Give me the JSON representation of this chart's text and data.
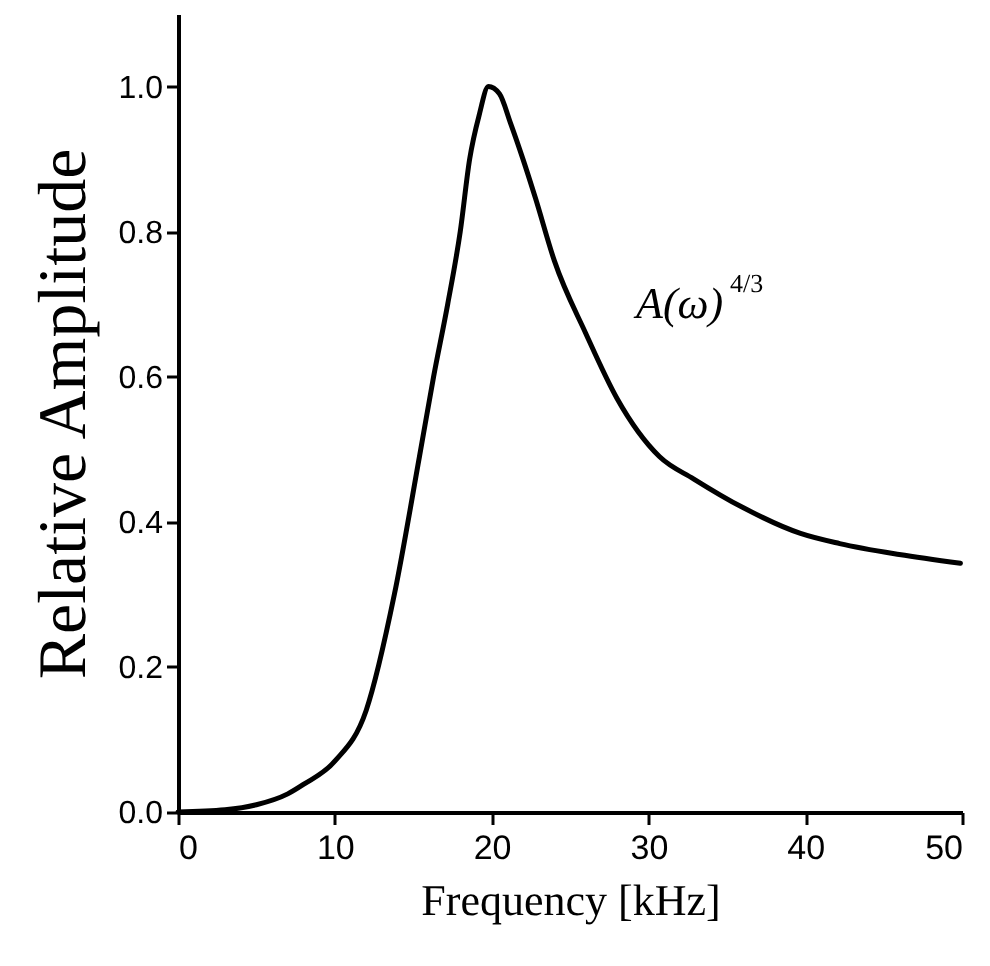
{
  "chart_data": {
    "type": "line",
    "xlabel": "Frequency [kHz]",
    "ylabel": "Relative Amplitude",
    "annotations": [
      "A(ω)$^{4/3}$"
    ],
    "x": [
      0,
      3,
      5,
      7,
      8,
      10,
      12,
      13.8,
      15.4,
      16.3,
      17.2,
      18,
      18.6,
      19.2,
      19.8,
      20.5,
      21.2,
      22,
      22.8,
      24,
      26,
      28,
      30.7,
      32.9,
      36,
      39.7,
      42.2,
      46,
      49.9
    ],
    "series": [
      {
        "color": "#000000",
        "values": [
          0,
          0.003,
          0.01,
          0.025,
          0.038,
          0.07,
          0.14,
          0.3,
          0.49,
          0.6,
          0.7,
          0.8,
          0.9,
          0.96,
          1.0,
          0.99,
          0.95,
          0.9,
          0.846,
          0.76,
          0.66,
          0.57,
          0.49,
          0.459,
          0.42,
          0.384,
          0.37,
          0.355,
          0.343
        ]
      }
    ],
    "xlim": [
      0,
      50
    ],
    "xticks": [
      0,
      10,
      20,
      30,
      40,
      50
    ],
    "ylim": [
      0,
      1.1
    ],
    "yticks": [
      {
        "value": 0,
        "label": "0.0"
      },
      0.2,
      0.4,
      0.6,
      0.8,
      {
        "value": 1,
        "label": "1.0"
      }
    ],
    "marker": "none",
    "line_style": "solid",
    "grid": false
  }
}
